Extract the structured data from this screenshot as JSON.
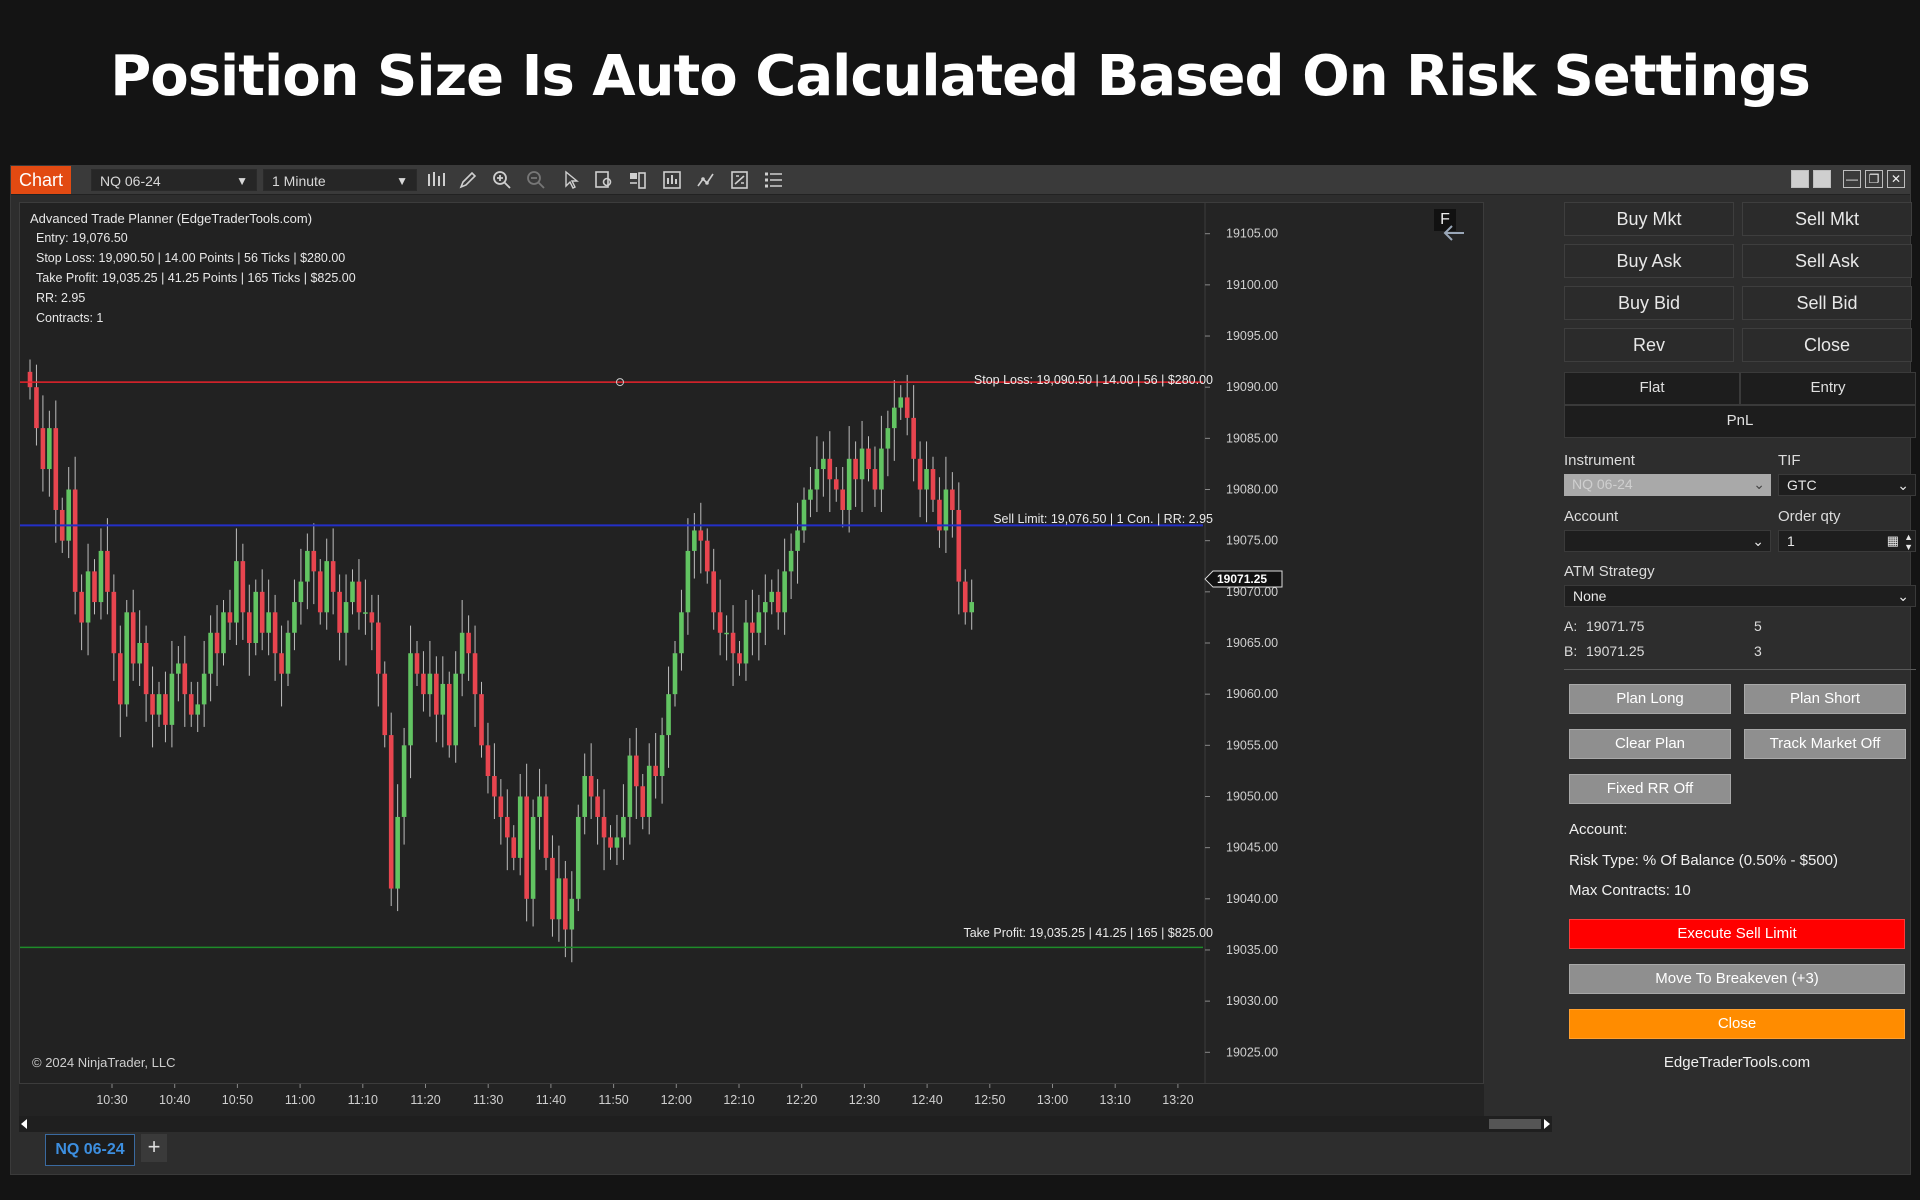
{
  "headline": "Position Size Is Auto Calculated Based On Risk Settings",
  "toolbar": {
    "chart_tab": "Chart",
    "instrument": "NQ 06-24",
    "interval": "1 Minute",
    "icons": [
      "bar-type-icon",
      "draw-pencil-icon",
      "zoom-in-icon",
      "zoom-out-icon",
      "pointer-icon",
      "data-box-icon",
      "chart-trader-icon",
      "indicators-icon",
      "strategies-icon",
      "properties-icon",
      "templates-list-icon"
    ]
  },
  "chart": {
    "info": {
      "title": "Advanced Trade Planner (EdgeTraderTools.com)",
      "entry": "Entry: 19,076.50",
      "stop": "Stop Loss: 19,090.50 | 14.00 Points | 56 Ticks | $280.00",
      "target": "Take Profit: 19,035.25 | 41.25 Points | 165 Ticks | $825.00",
      "rr": "RR: 2.95",
      "contracts": "Contracts: 1"
    },
    "stop_label": "Stop Loss: 19,090.50 | 14.00 | 56 | $280.00",
    "entry_label": "Sell Limit: 19,076.50 | 1 Con. | RR: 2.95",
    "target_label": "Take Profit: 19,035.25 | 41.25 | 165 | $825.00",
    "current_price": "19071.25",
    "f_badge": "F",
    "copyright": "© 2024 NinjaTrader, LLC",
    "colors": {
      "up": "#62c462",
      "down": "#e8454f",
      "stop": "#e8232b",
      "entry": "#2430c8",
      "target": "#1e8c2a"
    }
  },
  "chart_data": {
    "type": "candlestick",
    "title": "",
    "y_ticks": [
      "19105.00",
      "19100.00",
      "19095.00",
      "19090.00",
      "19085.00",
      "19080.00",
      "19075.00",
      "19070.00",
      "19065.00",
      "19060.00",
      "19055.00",
      "19050.00",
      "19045.00",
      "19040.00",
      "19035.00",
      "19030.00",
      "19025.00"
    ],
    "x_ticks": [
      "10:30",
      "10:40",
      "10:50",
      "11:00",
      "11:10",
      "11:20",
      "11:30",
      "11:40",
      "11:50",
      "12:00",
      "12:10",
      "12:20",
      "12:30",
      "12:40",
      "12:50",
      "13:00",
      "13:10",
      "13:20"
    ],
    "ylim": [
      19022,
      19108
    ],
    "levels": {
      "stop": 19090.5,
      "entry": 19076.5,
      "target": 19035.25
    },
    "closes": [
      19090,
      19086,
      19082,
      19086,
      19078,
      19075,
      19080,
      19070,
      19067,
      19072,
      19069,
      19074,
      19070,
      19064,
      19059,
      19068,
      19063,
      19065,
      19060,
      19058,
      19060,
      19057,
      19062,
      19063,
      19060,
      19058,
      19059,
      19062,
      19066,
      19064,
      19068,
      19067,
      19073,
      19068,
      19065,
      19070,
      19066,
      19068,
      19064,
      19062,
      19066,
      19069,
      19071,
      19074,
      19072,
      19068,
      19073,
      19070,
      19066,
      19069,
      19071,
      19068,
      19068,
      19067,
      19062,
      19056,
      19041,
      19048,
      19055,
      19064,
      19062,
      19060,
      19062,
      19058,
      19061,
      19055,
      19062,
      19066,
      19064,
      19060,
      19055,
      19052,
      19050,
      19048,
      19046,
      19044,
      19050,
      19040,
      19048,
      19050,
      19044,
      19038,
      19042,
      19037,
      19040,
      19048,
      19052,
      19050,
      19048,
      19046,
      19045,
      19046,
      19048,
      19054,
      19051,
      19048,
      19053,
      19052,
      19056,
      19060,
      19064,
      19068,
      19074,
      19076,
      19075,
      19072,
      19068,
      19066,
      19066,
      19064,
      19063,
      19067,
      19066,
      19068,
      19069,
      19070,
      19068,
      19072,
      19074,
      19076,
      19079,
      19080,
      19082,
      19083,
      19081,
      19080,
      19078,
      19083,
      19081,
      19084,
      19082,
      19080,
      19084,
      19086,
      19088,
      19089,
      19087,
      19083,
      19080,
      19082,
      19079,
      19076,
      19080,
      19078,
      19071,
      19068,
      19069
    ],
    "last_price": 19071.25
  },
  "panel": {
    "order_buttons": [
      {
        "label": "Buy Mkt"
      },
      {
        "label": "Sell Mkt"
      },
      {
        "label": "Buy Ask"
      },
      {
        "label": "Sell Ask"
      },
      {
        "label": "Buy Bid"
      },
      {
        "label": "Sell Bid"
      },
      {
        "label": "Rev"
      },
      {
        "label": "Close"
      }
    ],
    "position": {
      "flat": "Flat",
      "entry": "Entry",
      "pnl": "PnL"
    },
    "instrument_label": "Instrument",
    "instrument_value": "NQ 06-24",
    "tif_label": "TIF",
    "tif_value": "GTC",
    "account_label": "Account",
    "account_value": "",
    "order_qty_label": "Order qty",
    "order_qty_value": "1",
    "atm_label": "ATM Strategy",
    "atm_value": "None",
    "ask_label": "A:",
    "ask_price": "19071.75",
    "ask_size": "5",
    "bid_label": "B:",
    "bid_price": "19071.25",
    "bid_size": "3",
    "plan_long": "Plan Long",
    "plan_short": "Plan Short",
    "clear_plan": "Clear Plan",
    "track_market": "Track Market Off",
    "fixed_rr": "Fixed RR Off",
    "account_text": "Account:",
    "risk_type": "Risk Type: % Of Balance (0.50% - $500)",
    "max_contracts": "Max Contracts: 10",
    "execute": "Execute Sell Limit",
    "breakeven": "Move To Breakeven (+3)",
    "close": "Close",
    "site": "EdgeTraderTools.com"
  },
  "bottom_tab": "NQ 06-24"
}
